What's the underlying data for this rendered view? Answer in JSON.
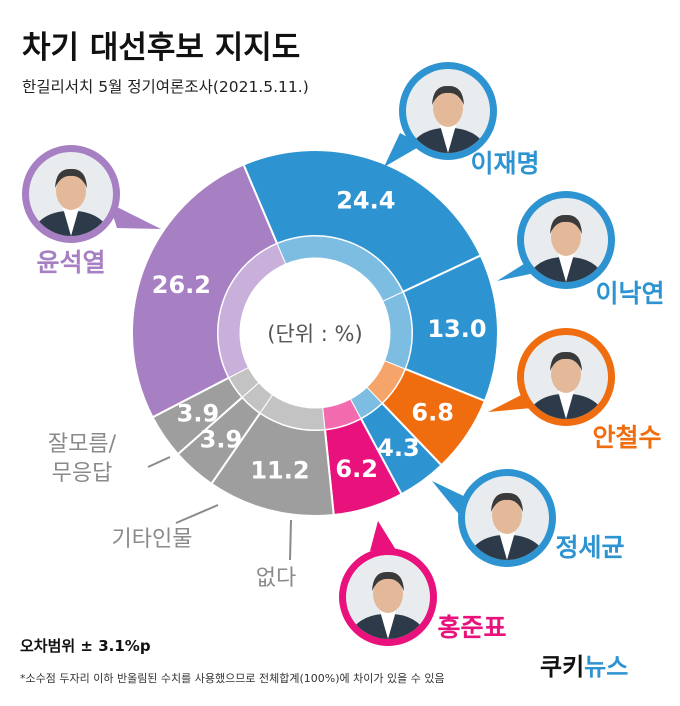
{
  "header": {
    "title": "차기 대선후보 지지도",
    "subtitle": "한길리서치 5월 정기여론조사(2021.5.11.)"
  },
  "chart_data": {
    "type": "pie",
    "donut": true,
    "unit_label": "(단위 : %)",
    "slices": [
      {
        "label": "이재명",
        "value": 24.4,
        "color": "#2e94d1"
      },
      {
        "label": "이낙연",
        "value": 13.0,
        "color": "#2e94d1"
      },
      {
        "label": "안철수",
        "value": 6.8,
        "color": "#ef6d0f"
      },
      {
        "label": "정세균",
        "value": 4.3,
        "color": "#2e94d1"
      },
      {
        "label": "홍준표",
        "value": 6.2,
        "color": "#e9117c"
      },
      {
        "label": "없다",
        "value": 11.2,
        "color": "#9e9e9e"
      },
      {
        "label": "기타인물",
        "value": 3.9,
        "color": "#9e9e9e"
      },
      {
        "label": "잘모름/무응답",
        "value": 3.9,
        "color": "#9e9e9e"
      },
      {
        "label": "윤석열",
        "value": 26.2,
        "color": "#a77fc3"
      }
    ],
    "display_labels": {
      "잘모름/무응답": [
        "잘모름/",
        "무응답"
      ]
    }
  },
  "colors": {
    "lee_party": "#2e94d1",
    "ahn": "#ef6d0f",
    "hong": "#e9117c",
    "yoon": "#a77fc3",
    "other": "#9e9e9e",
    "label_gray": "#8a8a8a"
  },
  "icons": {
    "candidate_photo": "person-portrait-icon"
  },
  "footer": {
    "margin_of_error": "오차범위 ± 3.1%p",
    "footnote": "*소수점 두자리 이하 반올림된 수치를 사용했으므로 전체합계(100%)에 차이가 있을 수 있음",
    "logo_part1": "쿠키",
    "logo_part2": "뉴스",
    "logo_color1": "#111111",
    "logo_color2": "#2e94d1"
  }
}
